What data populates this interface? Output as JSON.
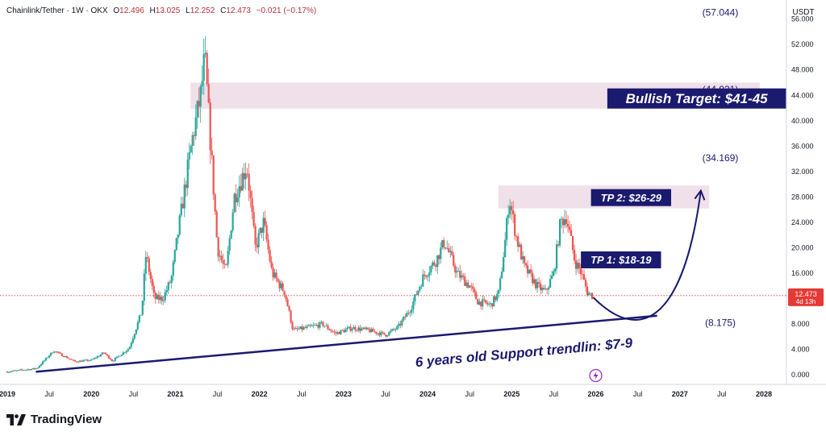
{
  "header": {
    "symbol": "Chainlink/Tether · 1W · OKX",
    "open_label": "O",
    "open": "12.496",
    "high_label": "H",
    "high": "13.025",
    "low_label": "L",
    "low": "12.252",
    "close_label": "C",
    "close": "12.473",
    "change": "−0.021 (−0.17%)"
  },
  "currency": "USDT",
  "brand": "TradingView",
  "brand_icon": "tradingview-logo-icon",
  "colors": {
    "up": "#26a69a",
    "down": "#ef5350",
    "navy": "#1a1a6e",
    "zone": "#ecdbe6",
    "price_tag": "#e53935",
    "accent": "#9c27b0"
  },
  "chart_data": {
    "type": "candlestick",
    "symbol": "Chainlink/Tether",
    "timeframe": "1W",
    "exchange": "OKX",
    "ylim": [
      -1.5,
      59
    ],
    "yticks": [
      "56.000",
      "52.000",
      "48.000",
      "44.000",
      "40.000",
      "36.000",
      "32.000",
      "28.000",
      "24.000",
      "20.000",
      "16.000",
      "12.000",
      "8.000",
      "4.000",
      "0.000"
    ],
    "xticks": [
      {
        "label": "2019",
        "t": 2019.0,
        "bold": true
      },
      {
        "label": "Jul",
        "t": 2019.5,
        "bold": false
      },
      {
        "label": "2020",
        "t": 2020.0,
        "bold": true
      },
      {
        "label": "Jul",
        "t": 2020.5,
        "bold": false
      },
      {
        "label": "2021",
        "t": 2021.0,
        "bold": true
      },
      {
        "label": "Jul",
        "t": 2021.5,
        "bold": false
      },
      {
        "label": "2022",
        "t": 2022.0,
        "bold": true
      },
      {
        "label": "Jul",
        "t": 2022.5,
        "bold": false
      },
      {
        "label": "2023",
        "t": 2023.0,
        "bold": true
      },
      {
        "label": "Jul",
        "t": 2023.5,
        "bold": false
      },
      {
        "label": "2024",
        "t": 2024.0,
        "bold": true
      },
      {
        "label": "Jul",
        "t": 2024.5,
        "bold": false
      },
      {
        "label": "2025",
        "t": 2025.0,
        "bold": true
      },
      {
        "label": "Jul",
        "t": 2025.5,
        "bold": false
      },
      {
        "label": "2026",
        "t": 2026.0,
        "bold": true
      },
      {
        "label": "Jul",
        "t": 2026.5,
        "bold": false
      },
      {
        "label": "2027",
        "t": 2027.0,
        "bold": true
      },
      {
        "label": "Jul",
        "t": 2027.5,
        "bold": false
      },
      {
        "label": "2028",
        "t": 2028.0,
        "bold": true
      }
    ],
    "price_path": [
      [
        2019.0,
        0.5
      ],
      [
        2019.35,
        1.0
      ],
      [
        2019.55,
        3.8
      ],
      [
        2019.8,
        2.1
      ],
      [
        2020.0,
        2.3
      ],
      [
        2020.15,
        3.5
      ],
      [
        2020.25,
        2.2
      ],
      [
        2020.45,
        4.2
      ],
      [
        2020.6,
        10
      ],
      [
        2020.65,
        19
      ],
      [
        2020.75,
        12
      ],
      [
        2020.85,
        12
      ],
      [
        2020.95,
        15
      ],
      [
        2021.05,
        24
      ],
      [
        2021.12,
        30
      ],
      [
        2021.2,
        37
      ],
      [
        2021.3,
        44
      ],
      [
        2021.35,
        50
      ],
      [
        2021.45,
        30
      ],
      [
        2021.5,
        20
      ],
      [
        2021.6,
        16
      ],
      [
        2021.7,
        28
      ],
      [
        2021.85,
        33
      ],
      [
        2021.95,
        20
      ],
      [
        2022.05,
        24
      ],
      [
        2022.15,
        16
      ],
      [
        2022.3,
        13
      ],
      [
        2022.4,
        7
      ],
      [
        2022.6,
        7.5
      ],
      [
        2022.75,
        8
      ],
      [
        2022.9,
        6.5
      ],
      [
        2023.1,
        7.4
      ],
      [
        2023.3,
        7.0
      ],
      [
        2023.5,
        6.3
      ],
      [
        2023.65,
        7.5
      ],
      [
        2023.8,
        10.5
      ],
      [
        2023.95,
        15.5
      ],
      [
        2024.1,
        18
      ],
      [
        2024.2,
        21
      ],
      [
        2024.35,
        16
      ],
      [
        2024.5,
        14
      ],
      [
        2024.6,
        11.5
      ],
      [
        2024.75,
        11
      ],
      [
        2024.85,
        13
      ],
      [
        2024.93,
        22
      ],
      [
        2024.97,
        28
      ],
      [
        2025.05,
        22
      ],
      [
        2025.15,
        17
      ],
      [
        2025.3,
        14
      ],
      [
        2025.4,
        13
      ],
      [
        2025.5,
        16
      ],
      [
        2025.58,
        24
      ],
      [
        2025.65,
        25
      ],
      [
        2025.75,
        18
      ],
      [
        2025.83,
        16
      ],
      [
        2025.9,
        13
      ],
      [
        2025.96,
        12.47
      ]
    ],
    "last_price": "12.473",
    "last_price_value": 12.473,
    "countdown": "4d 13h",
    "annotations": {
      "levels": [
        {
          "label": "(57.044)",
          "value": 57.044
        },
        {
          "label": "(44.931)",
          "value": 44.931
        },
        {
          "label": "(34.169)",
          "value": 34.169
        },
        {
          "label": "(8.175)",
          "value": 8.175
        }
      ],
      "zones": [
        {
          "t0": 2021.18,
          "t1": 2027.95,
          "y0": 41.9,
          "y1": 46.0
        },
        {
          "t0": 2024.84,
          "t1": 2027.35,
          "y0": 26.2,
          "y1": 29.8
        }
      ],
      "targets": [
        {
          "text": "Bullish Target: $41-45",
          "t": 2027.2,
          "y": 43.5,
          "size": "large"
        },
        {
          "text": "TP 2: $26-29",
          "t": 2026.42,
          "y": 27.9,
          "size": "small"
        },
        {
          "text": "TP 1: $18-19",
          "t": 2026.3,
          "y": 18.1,
          "size": "small"
        }
      ],
      "trendline": {
        "label": "6 years old Support trendlin: $7-9",
        "from": [
          2019.35,
          0.5
        ],
        "to": [
          2026.72,
          9.3
        ]
      },
      "projection": {
        "from": [
          2025.97,
          12.2
        ],
        "control": [
          2026.55,
          4.5
        ],
        "control2": [
          2027.05,
          9.0
        ],
        "to": [
          2027.25,
          29.0
        ]
      }
    }
  }
}
